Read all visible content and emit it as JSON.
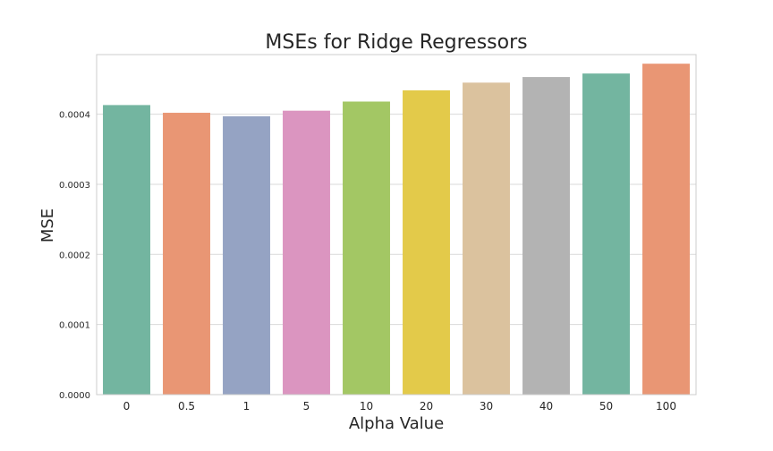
{
  "chart_data": {
    "type": "bar",
    "title": "MSEs for Ridge Regressors",
    "xlabel": "Alpha Value",
    "ylabel": "MSE",
    "categories": [
      "0",
      "0.5",
      "1",
      "5",
      "10",
      "20",
      "30",
      "40",
      "50",
      "100"
    ],
    "values": [
      0.000413,
      0.000402,
      0.000397,
      0.000405,
      0.000418,
      0.000434,
      0.000445,
      0.000453,
      0.000458,
      0.000472
    ],
    "colors": [
      "#73b5a0",
      "#e99674",
      "#95a3c3",
      "#db95c0",
      "#a3c764",
      "#e3ca4a",
      "#dbc29e",
      "#b3b3b3",
      "#73b5a0",
      "#e99674"
    ],
    "ylim": [
      0,
      0.000485
    ],
    "yticks": [
      0,
      0.0001,
      0.0002,
      0.0003,
      0.0004
    ],
    "ytick_labels": [
      "0.0000",
      "0.0001",
      "0.0002",
      "0.0003",
      "0.0004"
    ],
    "grid": true,
    "legend": "none"
  }
}
